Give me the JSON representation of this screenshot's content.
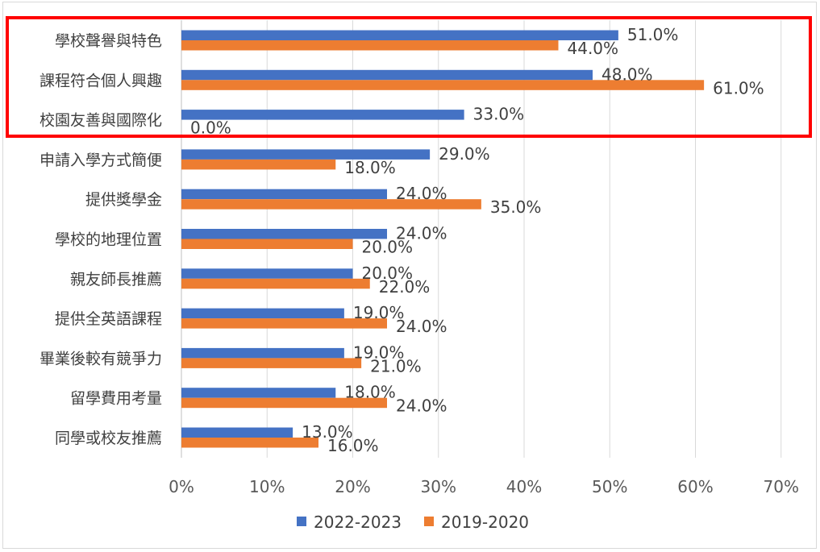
{
  "chart_data": {
    "type": "bar",
    "orientation": "horizontal",
    "categories": [
      "學校聲譽與特色",
      "課程符合個人興趣",
      "校園友善與國際化",
      "申請入學方式簡便",
      "提供獎學金",
      "學校的地理位置",
      "親友師長推薦",
      "提供全英語課程",
      "畢業後較有競爭力",
      "留學費用考量",
      "同學或校友推薦"
    ],
    "series": [
      {
        "name": "2022-2023",
        "color": "#4472c4",
        "values": [
          51,
          48,
          33,
          29,
          24,
          24,
          20,
          19,
          19,
          18,
          13
        ],
        "labels": [
          "51.0%",
          "48.0%",
          "33.0%",
          "29.0%",
          "24.0%",
          "24.0%",
          "20.0%",
          "19.0%",
          "19.0%",
          "18.0%",
          "13.0%"
        ]
      },
      {
        "name": "2019-2020",
        "color": "#ed7d31",
        "values": [
          44,
          61,
          0,
          18,
          35,
          20,
          22,
          24,
          21,
          24,
          16
        ],
        "labels": [
          "44.0%",
          "61.0%",
          "0.0%",
          "18.0%",
          "35.0%",
          "20.0%",
          "22.0%",
          "24.0%",
          "21.0%",
          "24.0%",
          "16.0%"
        ]
      }
    ],
    "x_ticks": [
      "0%",
      "10%",
      "20%",
      "30%",
      "40%",
      "50%",
      "60%",
      "70%"
    ],
    "xlim": [
      0,
      70
    ],
    "grid": true,
    "legend_position": "bottom",
    "highlight_box": {
      "categories": [
        "學校聲譽與特色",
        "課程符合個人興趣",
        "校園友善與國際化"
      ],
      "color": "#ff0000"
    }
  }
}
